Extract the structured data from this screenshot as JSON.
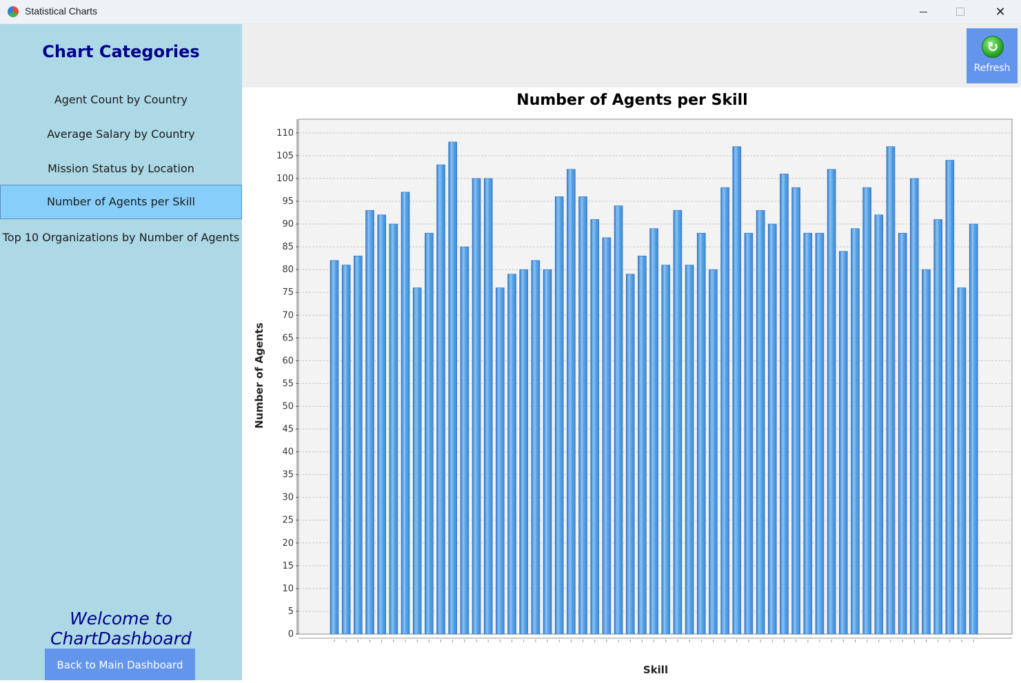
{
  "window": {
    "title": "Statistical Charts"
  },
  "sidebar": {
    "title": "Chart Categories",
    "items": [
      {
        "label": "Agent Count by Country"
      },
      {
        "label": "Average Salary by Country"
      },
      {
        "label": "Mission Status by Location"
      },
      {
        "label": "Number of Agents per Skill"
      },
      {
        "label": "Top 10 Organizations by Number of Agents"
      }
    ],
    "active_index": 3,
    "welcome": "Welcome to ChartDashboard",
    "back_label": "Back to Main Dashboard"
  },
  "toolbar": {
    "refresh_label": "Refresh"
  },
  "colors": {
    "sidebar_bg": "#add8e6",
    "active_item": "#87cefa",
    "button_bg": "#6495ed",
    "title_text": "#00008b",
    "bar": "#4f9be0"
  },
  "chart_data": {
    "type": "bar",
    "title": "Number of Agents per Skill",
    "xlabel": "Skill",
    "ylabel": "Number of Agents",
    "ylim": [
      0,
      113
    ],
    "ytick_step": 5,
    "grid": true,
    "legend": "none",
    "values": [
      82,
      81,
      83,
      93,
      92,
      90,
      97,
      76,
      88,
      103,
      108,
      85,
      100,
      100,
      76,
      79,
      80,
      82,
      80,
      96,
      102,
      96,
      91,
      87,
      94,
      79,
      83,
      89,
      81,
      93,
      81,
      88,
      80,
      98,
      107,
      88,
      93,
      90,
      101,
      98,
      88,
      88,
      102,
      84,
      89,
      98,
      92,
      107,
      88,
      100,
      80,
      91,
      104,
      76,
      90
    ]
  }
}
